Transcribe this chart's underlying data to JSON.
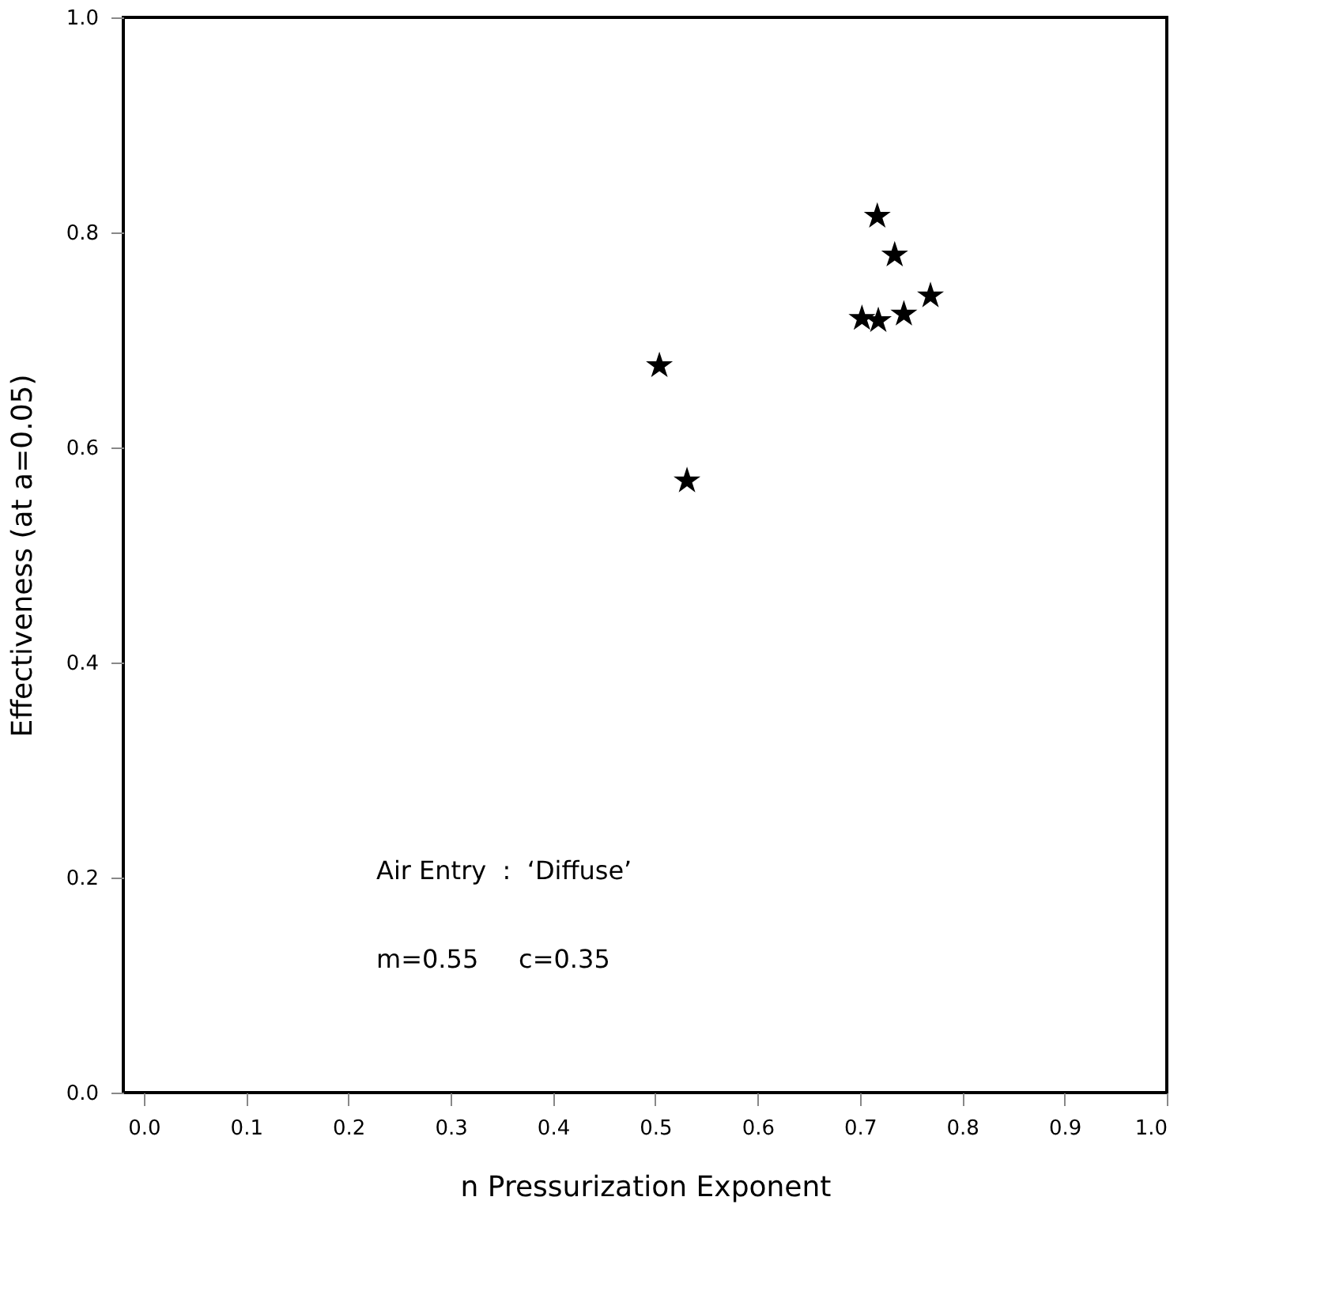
{
  "chart_data": {
    "type": "scatter",
    "xlabel": "n    Pressurization Exponent",
    "ylabel": "Effectiveness  (at  a=0.05)",
    "x": [
      0.717,
      0.734,
      0.769,
      0.702,
      0.718,
      0.743,
      0.504,
      0.531
    ],
    "series": [
      {
        "color": "#000000",
        "values": [
          0.815,
          0.779,
          0.741,
          0.72,
          0.718,
          0.724,
          0.676,
          0.569
        ]
      }
    ],
    "xlim": [
      -0.02,
      1.0
    ],
    "xticks": [
      {
        "value": 0.0,
        "label": "0.0"
      },
      {
        "value": 0.1,
        "label": "0.1"
      },
      {
        "value": 0.2,
        "label": "0.2"
      },
      {
        "value": 0.3,
        "label": "0.3"
      },
      {
        "value": 0.4,
        "label": "0.4"
      },
      {
        "value": 0.5,
        "label": "0.5"
      },
      {
        "value": 0.6,
        "label": "0.6"
      },
      {
        "value": 0.7,
        "label": "0.7"
      },
      {
        "value": 0.8,
        "label": "0.8"
      },
      {
        "value": 0.9,
        "label": "0.9"
      },
      {
        "value": 1.0,
        "label": "1.0"
      }
    ],
    "ylim": [
      0.0,
      1.0
    ],
    "yticks": [
      {
        "value": 0.0,
        "label": "0.0"
      },
      {
        "value": 0.2,
        "label": "0.2"
      },
      {
        "value": 0.4,
        "label": "0.4"
      },
      {
        "value": 0.6,
        "label": "0.6"
      },
      {
        "value": 0.8,
        "label": "0.8"
      },
      {
        "value": 1.0,
        "label": "1.0"
      }
    ],
    "annotations": [
      "Air Entry  :  ‘Diffuse’",
      "m=0.55     c=0.35"
    ],
    "marker": "star",
    "grid": false
  }
}
